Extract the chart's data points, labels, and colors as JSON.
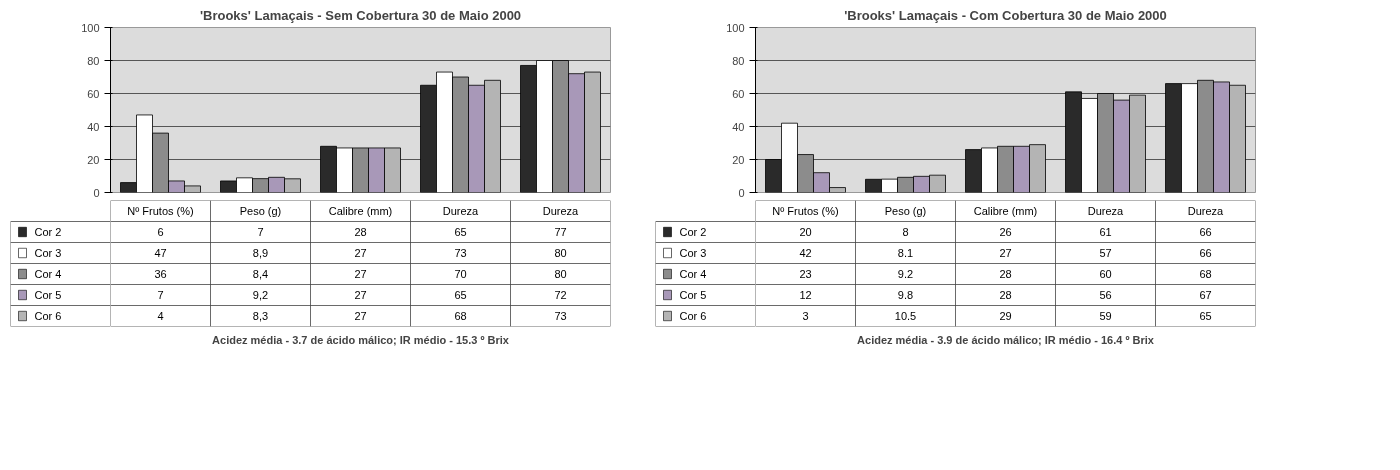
{
  "chart_data": [
    {
      "type": "bar",
      "title": "'Brooks' Lamaçais - Sem Cobertura 30 de Maio 2000",
      "categories": [
        "Nº Frutos (%)",
        "Peso (g)",
        "Calibre (mm)",
        "Dureza",
        "Dureza"
      ],
      "series": [
        {
          "name": "Cor 2",
          "color": "#2a2a2a",
          "values": [
            6,
            7,
            28,
            65,
            77
          ]
        },
        {
          "name": "Cor 3",
          "color": "#ffffff",
          "values": [
            47,
            8.9,
            27,
            73,
            80
          ],
          "value_labels": [
            "47",
            "8,9",
            "27",
            "73",
            "80"
          ]
        },
        {
          "name": "Cor 4",
          "color": "#8c8c8c",
          "values": [
            36,
            8.4,
            27,
            70,
            80
          ],
          "value_labels": [
            "36",
            "8,4",
            "27",
            "70",
            "80"
          ]
        },
        {
          "name": "Cor 5",
          "color": "#a898b8",
          "values": [
            7,
            9.2,
            27,
            65,
            72
          ],
          "value_labels": [
            "7",
            "9,2",
            "27",
            "65",
            "72"
          ]
        },
        {
          "name": "Cor 6",
          "color": "#b4b4b4",
          "values": [
            4,
            8.3,
            27,
            68,
            73
          ],
          "value_labels": [
            "4",
            "8,3",
            "27",
            "68",
            "73"
          ]
        }
      ],
      "ylim": [
        0,
        100
      ],
      "yticks": [
        0,
        20,
        40,
        60,
        80,
        100
      ],
      "grid": "y",
      "legend": "bottom",
      "data_labels": true,
      "annotations": [
        "Acidez média - 3.7 de ácido málico; IR médio - 15.3 º Brix"
      ]
    },
    {
      "type": "bar",
      "title": "'Brooks' Lamaçais - Com Cobertura 30 de Maio 2000",
      "categories": [
        "Nº Frutos (%)",
        "Peso (g)",
        "Calibre (mm)",
        "Dureza",
        "Dureza"
      ],
      "series": [
        {
          "name": "Cor 2",
          "color": "#2a2a2a",
          "values": [
            20,
            8,
            26,
            61,
            66
          ]
        },
        {
          "name": "Cor 3",
          "color": "#ffffff",
          "values": [
            42,
            8.1,
            27,
            57,
            66
          ]
        },
        {
          "name": "Cor 4",
          "color": "#8c8c8c",
          "values": [
            23,
            9.2,
            28,
            60,
            68
          ]
        },
        {
          "name": "Cor 5",
          "color": "#a898b8",
          "values": [
            12,
            9.8,
            28,
            56,
            67
          ]
        },
        {
          "name": "Cor 6",
          "color": "#b4b4b4",
          "values": [
            3,
            10.5,
            29,
            59,
            65
          ]
        }
      ],
      "ylim": [
        0,
        100
      ],
      "yticks": [
        0,
        20,
        40,
        60,
        80,
        100
      ],
      "grid": "y",
      "legend": "bottom",
      "data_labels": true,
      "annotations": [
        "Acidez média - 3.9 de ácido málico; IR médio - 16.4 º Brix"
      ]
    }
  ]
}
